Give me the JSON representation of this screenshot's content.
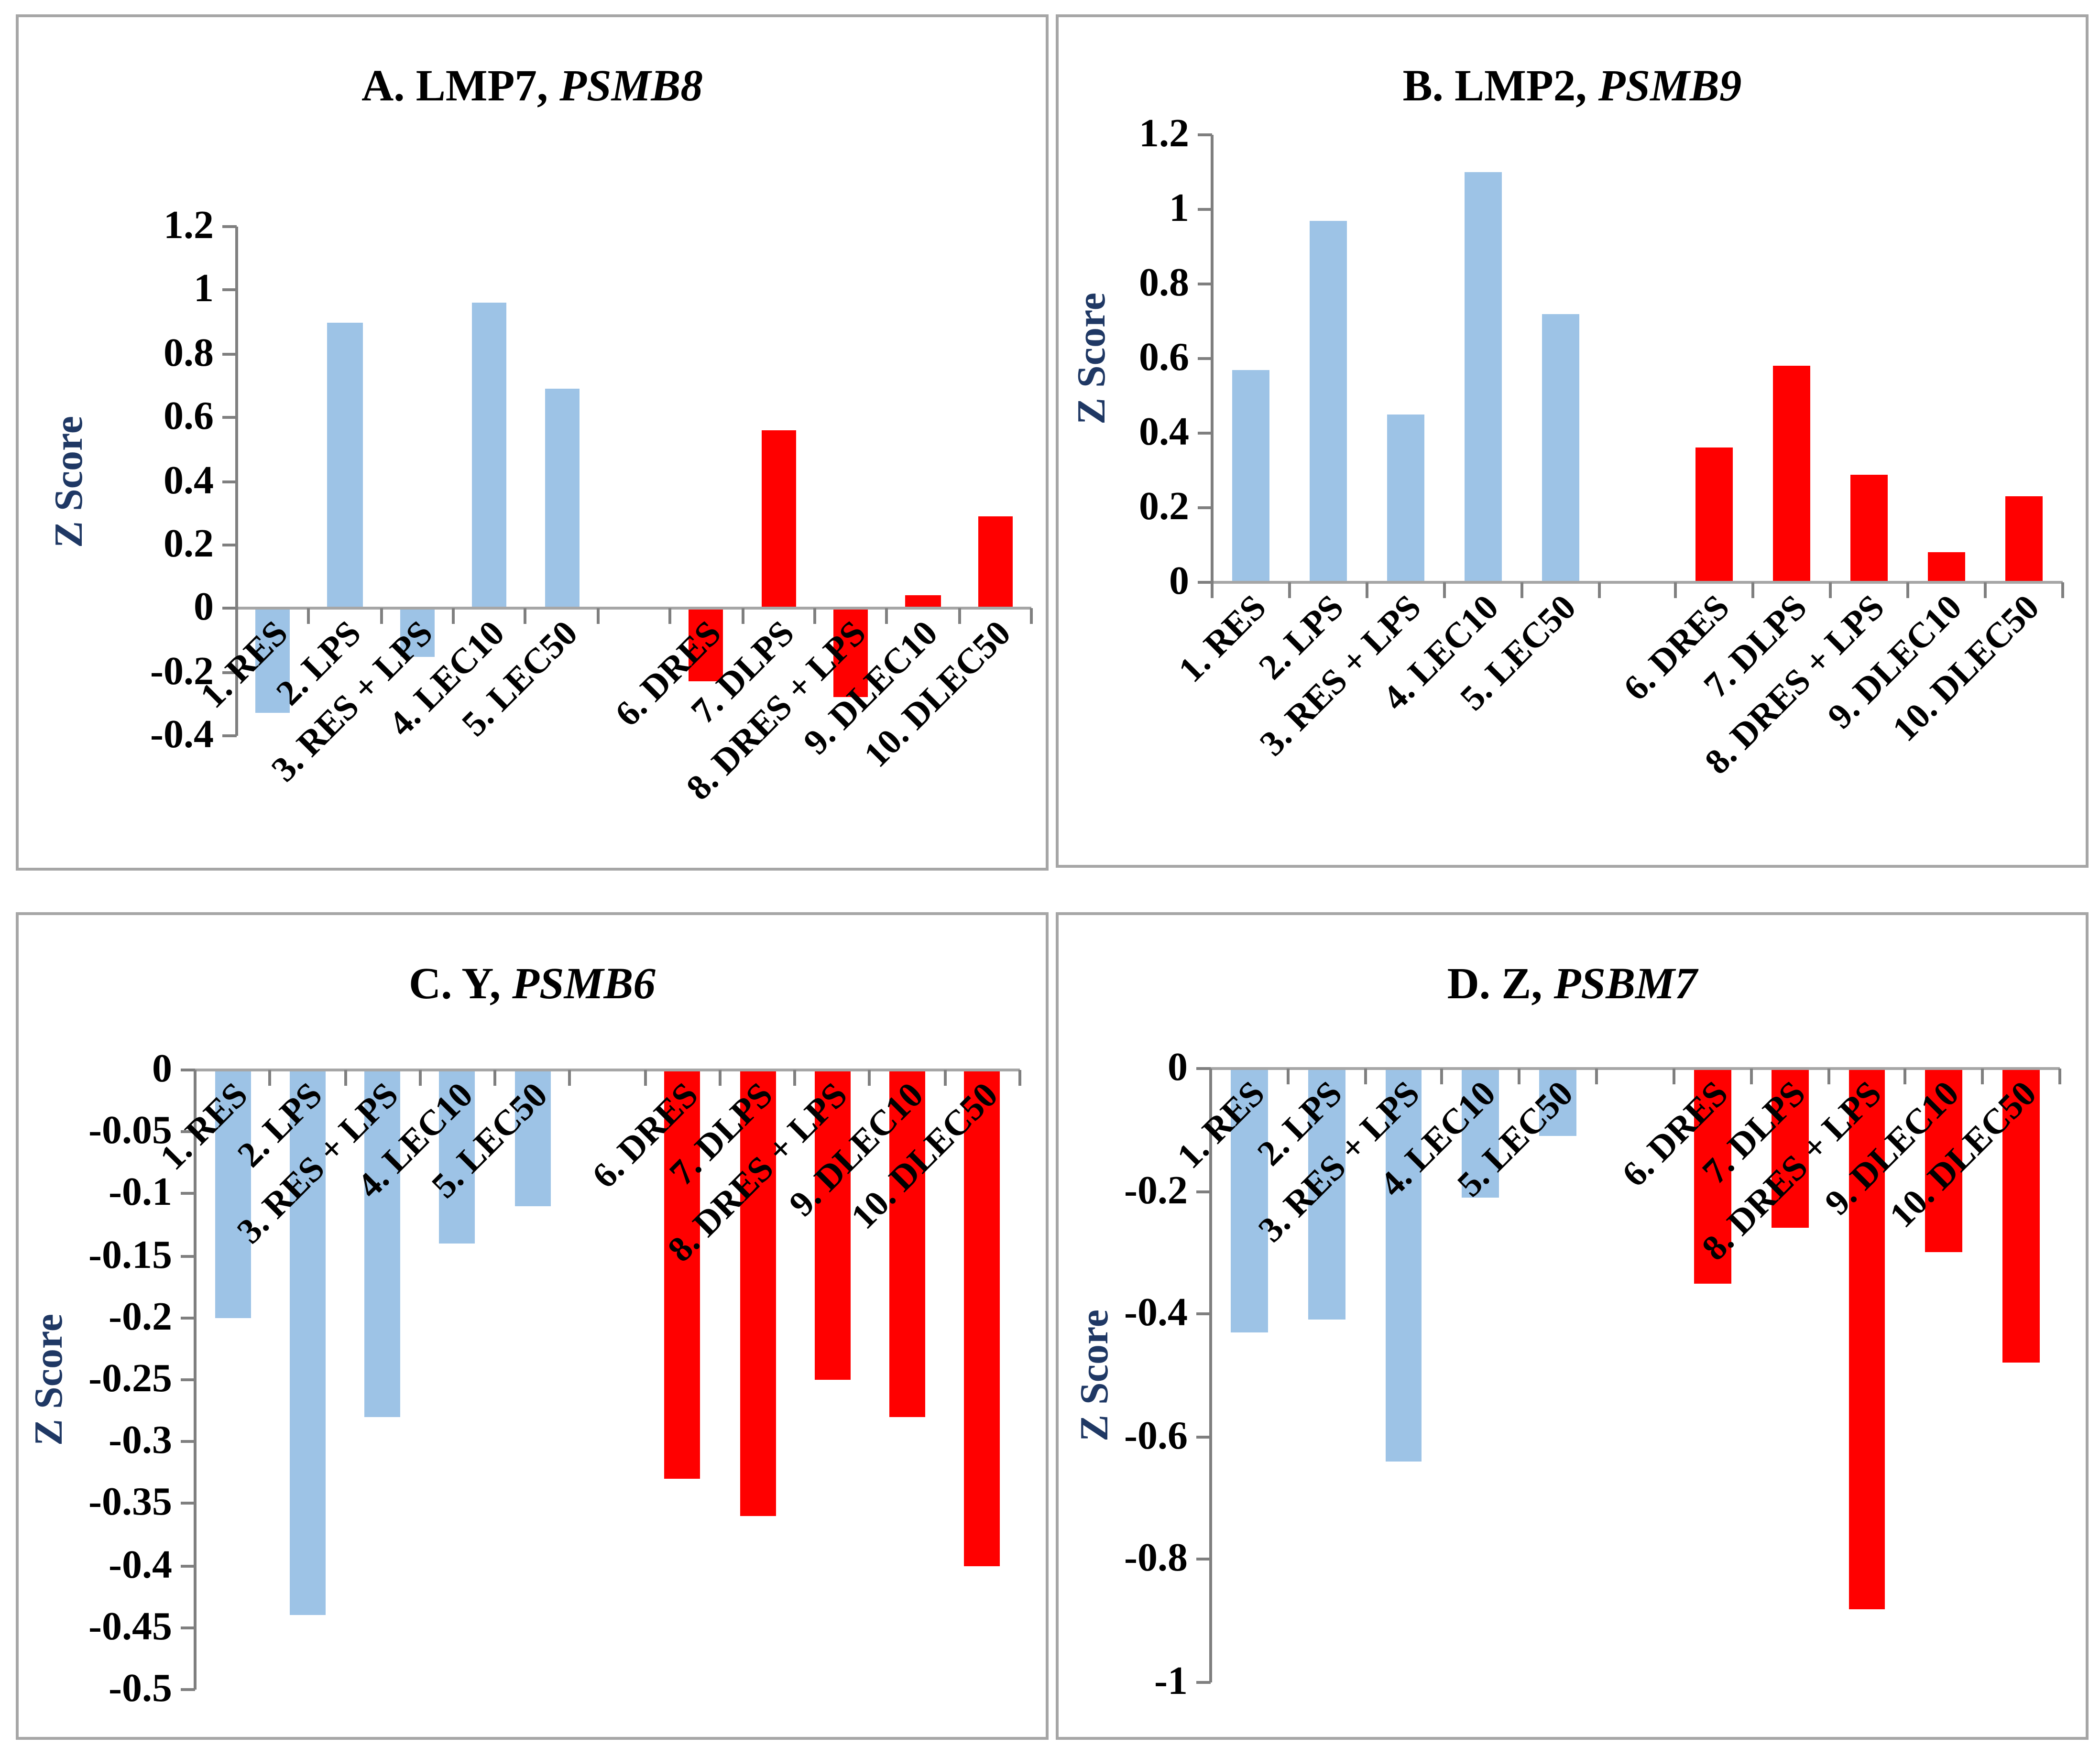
{
  "figure": {
    "background": "#FFFFFF",
    "panel_border_color": "#A6A6A6",
    "axis_line_color": "#7F7F7F",
    "zero_line_color": "#A6A6A6",
    "bar_color_blue": "#9DC3E6",
    "bar_color_red": "#FF0000",
    "ylabel_color": "#1F3864",
    "text_color": "#000000",
    "layout_note": "2x2 grid of bar charts, blue bars = categories 1-5, red bars = categories 6-10, empty slot between groups"
  },
  "chart_data": [
    {
      "panel": "A",
      "type": "bar",
      "title_prefix": "A. LMP7,",
      "title_gene": "PSMB8",
      "ylabel": "Z Score",
      "categories": [
        "1. RES",
        "2. LPS",
        "3. RES + LPS",
        "4. LEC10",
        "5. LEC50",
        "6. DRES",
        "7. DLPS",
        "8. DRES + LPS",
        "9. DLEC10",
        "10. DLEC50"
      ],
      "values": [
        -0.33,
        0.9,
        -0.15,
        0.96,
        0.69,
        -0.23,
        0.56,
        -0.28,
        0.04,
        0.29
      ],
      "bar_colors": [
        "blue",
        "blue",
        "blue",
        "blue",
        "blue",
        "red",
        "red",
        "red",
        "red",
        "red"
      ],
      "ylim": [
        -0.4,
        1.2
      ],
      "yticks": [
        "1.2",
        "1",
        "0.8",
        "0.6",
        "0.4",
        "0.2",
        "0",
        "-0.2",
        "-0.4"
      ],
      "grid": false,
      "legend_position": "none"
    },
    {
      "panel": "B",
      "type": "bar",
      "title_prefix": "B. LMP2,",
      "title_gene": "PSMB9",
      "ylabel": "Z Score",
      "categories": [
        "1. RES",
        "2. LPS",
        "3. RES + LPS",
        "4. LEC10",
        "5. LEC50",
        "6. DRES",
        "7. DLPS",
        "8. DRES + LPS",
        "9. DLEC10",
        "10. DLEC50"
      ],
      "values": [
        0.57,
        0.97,
        0.45,
        1.1,
        0.72,
        0.36,
        0.58,
        0.29,
        0.08,
        0.23
      ],
      "bar_colors": [
        "blue",
        "blue",
        "blue",
        "blue",
        "blue",
        "red",
        "red",
        "red",
        "red",
        "red"
      ],
      "ylim": [
        0,
        1.2
      ],
      "yticks": [
        "1.2",
        "1",
        "0.8",
        "0.6",
        "0.4",
        "0.2",
        "0"
      ],
      "grid": false,
      "legend_position": "none"
    },
    {
      "panel": "C",
      "type": "bar",
      "title_prefix": "C. Y,",
      "title_gene": "PSMB6",
      "ylabel": "Z Score",
      "categories": [
        "1. RES",
        "2. LPS",
        "3. RES + LPS",
        "4. LEC10",
        "5. LEC50",
        "6. DRES",
        "7. DLPS",
        "8. DRES + LPS",
        "9. DLEC10",
        "10. DLEC50"
      ],
      "values": [
        -0.2,
        -0.44,
        -0.28,
        -0.14,
        -0.11,
        -0.33,
        -0.36,
        -0.25,
        -0.28,
        -0.4
      ],
      "bar_colors": [
        "blue",
        "blue",
        "blue",
        "blue",
        "blue",
        "red",
        "red",
        "red",
        "red",
        "red"
      ],
      "ylim": [
        -0.5,
        0
      ],
      "yticks": [
        "0",
        "-0.05",
        "-0.1",
        "-0.15",
        "-0.2",
        "-0.25",
        "-0.3",
        "-0.35",
        "-0.4",
        "-0.45",
        "-0.5"
      ],
      "grid": false,
      "legend_position": "none"
    },
    {
      "panel": "D",
      "type": "bar",
      "title_prefix": "D. Z,",
      "title_gene": "PSBM7",
      "ylabel": "Z Score",
      "categories": [
        "1. RES",
        "2. LPS",
        "3. RES + LPS",
        "4. LEC10",
        "5. LEC50",
        "6. DRES",
        "7. DLPS",
        "8. DRES + LPS",
        "9. DLEC10",
        "10. DLEC50"
      ],
      "values": [
        -0.43,
        -0.41,
        -0.64,
        -0.21,
        -0.11,
        -0.35,
        -0.26,
        -0.88,
        -0.3,
        -0.48
      ],
      "bar_colors": [
        "blue",
        "blue",
        "blue",
        "blue",
        "blue",
        "red",
        "red",
        "red",
        "red",
        "red"
      ],
      "ylim": [
        -1,
        0
      ],
      "yticks": [
        "0",
        "-0.2",
        "-0.4",
        "-0.6",
        "-0.8",
        "-1"
      ],
      "grid": false,
      "legend_position": "none"
    }
  ]
}
